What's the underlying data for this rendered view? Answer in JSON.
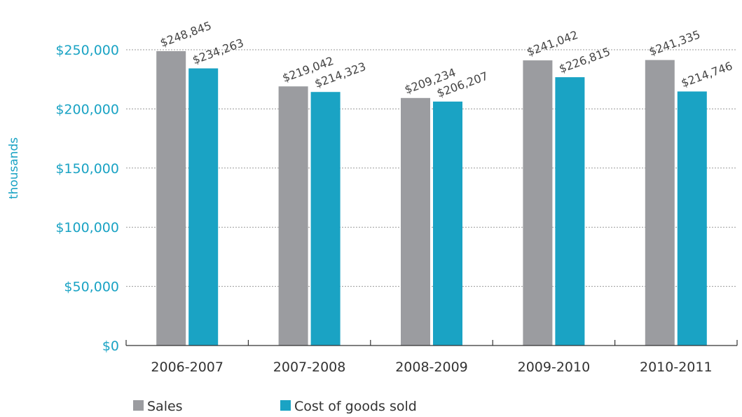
{
  "chart_data": {
    "type": "bar",
    "title": "",
    "xlabel": "",
    "ylabel": "thousands",
    "ylim": [
      0,
      250000
    ],
    "y_ticks": [
      0,
      50000,
      100000,
      150000,
      200000,
      250000
    ],
    "y_tick_labels": [
      "$0",
      "$50,000",
      "$100,000",
      "$150,000",
      "$200,000",
      "$250,000"
    ],
    "grid": true,
    "legend_position": "bottom-left",
    "categories": [
      "2006-2007",
      "2007-2008",
      "2008-2009",
      "2009-2010",
      "2010-2011"
    ],
    "series": [
      {
        "name": "Sales",
        "color": "#9b9ca0",
        "values": [
          248845,
          219042,
          209234,
          241042,
          241335
        ],
        "labels": [
          "$248,845",
          "$219,042",
          "$209,234",
          "$241,042",
          "$241,335"
        ]
      },
      {
        "name": "Cost of goods sold",
        "color": "#1aa3c4",
        "values": [
          234263,
          214323,
          206207,
          226815,
          214746
        ],
        "labels": [
          "$234,263",
          "$214,323",
          "$206,207",
          "$226,815",
          "$214,746"
        ]
      }
    ]
  }
}
